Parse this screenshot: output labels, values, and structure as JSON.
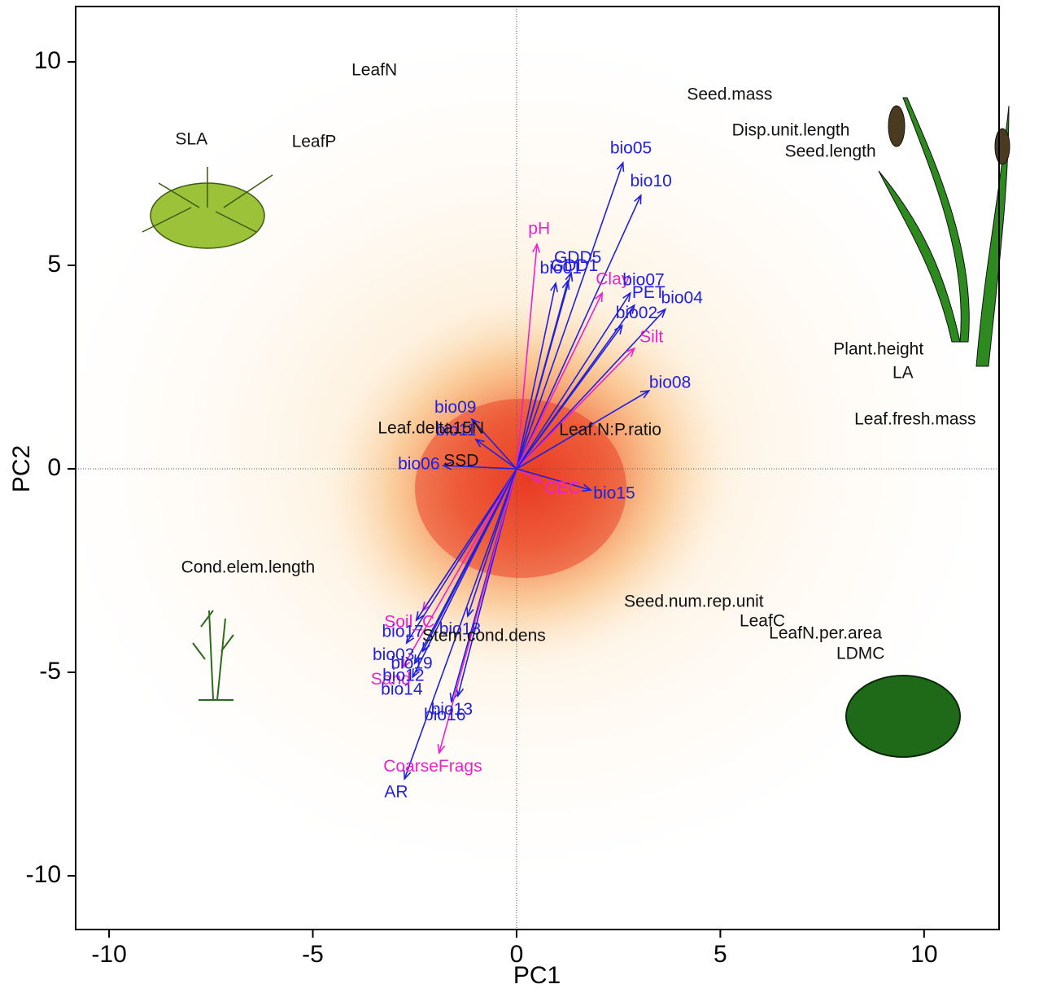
{
  "chart_data": {
    "type": "biplot",
    "xlabel": "PC1",
    "ylabel": "PC2",
    "xlim": [
      -10.82,
      11.84
    ],
    "ylim": [
      -11.32,
      11.36
    ],
    "xticks": [
      -10,
      -5,
      0,
      5,
      10
    ],
    "yticks": [
      -10,
      -5,
      0,
      5,
      10
    ],
    "arrows": [
      {
        "name": "bio05",
        "color": "#2020e0",
        "x": 2.61,
        "y": 7.52
      },
      {
        "name": "bio10",
        "color": "#2020e0",
        "x": 3.05,
        "y": 6.72
      },
      {
        "name": "pH",
        "color": "#ee22cc",
        "x": 0.5,
        "y": 5.52
      },
      {
        "name": "GDD5",
        "color": "#2020e0",
        "x": 1.34,
        "y": 4.82
      },
      {
        "name": "GDD1",
        "color": "#2020e0",
        "x": 1.26,
        "y": 4.62
      },
      {
        "name": "bio01",
        "color": "#2020e0",
        "x": 0.96,
        "y": 4.56
      },
      {
        "name": "Clay",
        "color": "#ee22cc",
        "x": 2.1,
        "y": 4.32
      },
      {
        "name": "bio07",
        "color": "#2020e0",
        "x": 2.79,
        "y": 4.32
      },
      {
        "name": "bio04",
        "color": "#2020e0",
        "x": 3.65,
        "y": 3.92
      },
      {
        "name": "PET",
        "color": "#2020e0",
        "x": 2.89,
        "y": 4.02
      },
      {
        "name": "Silt",
        "color": "#ee22cc",
        "x": 2.89,
        "y": 2.96
      },
      {
        "name": "bio02",
        "color": "#2020e0",
        "x": 2.59,
        "y": 3.52
      },
      {
        "name": "bio08",
        "color": "#2020e0",
        "x": 3.25,
        "y": 1.92
      },
      {
        "name": "bio09",
        "color": "#2020e0",
        "x": -1.1,
        "y": 1.22
      },
      {
        "name": "bio11",
        "color": "#2020e0",
        "x": -1.0,
        "y": 0.72
      },
      {
        "name": "bio06",
        "color": "#2020e0",
        "x": -1.8,
        "y": 0.08
      },
      {
        "name": "CEC",
        "color": "#ee22cc",
        "x": 0.6,
        "y": -0.32
      },
      {
        "name": "bio15",
        "color": "#2020e0",
        "x": 1.82,
        "y": -0.52
      },
      {
        "name": "Soil_C",
        "color": "#ee22cc",
        "x": -2.3,
        "y": -3.48
      },
      {
        "name": "bio17",
        "color": "#2020e0",
        "x": -2.46,
        "y": -3.72
      },
      {
        "name": "bio18",
        "color": "#2020e0",
        "x": -1.2,
        "y": -3.62
      },
      {
        "name": "bio03",
        "color": "#2020e0",
        "x": -2.7,
        "y": -4.28
      },
      {
        "name": "bio19",
        "color": "#2020e0",
        "x": -2.3,
        "y": -4.48
      },
      {
        "name": "bio14",
        "color": "#2020e0",
        "x": -2.55,
        "y": -5.12
      },
      {
        "name": "Sand",
        "color": "#ee22cc",
        "x": -2.79,
        "y": -4.88
      },
      {
        "name": "bio12",
        "color": "#2020e0",
        "x": -2.5,
        "y": -4.78
      },
      {
        "name": "bio13",
        "color": "#2020e0",
        "x": -1.44,
        "y": -5.58
      },
      {
        "name": "bio16",
        "color": "#2020e0",
        "x": -1.6,
        "y": -5.72
      },
      {
        "name": "CoarseFrags",
        "color": "#ee22cc",
        "x": -1.9,
        "y": -6.98
      },
      {
        "name": "AR",
        "color": "#2020e0",
        "x": -2.75,
        "y": -7.62
      }
    ],
    "points_color": "#111111",
    "points": [
      {
        "name": "LeafN",
        "x": -3.49,
        "y": 9.78
      },
      {
        "name": "Seed.mass",
        "x": 5.23,
        "y": 9.18
      },
      {
        "name": "SLA",
        "x": -7.98,
        "y": 8.08
      },
      {
        "name": "LeafP",
        "x": -4.97,
        "y": 8.02
      },
      {
        "name": "Disp.unit.length",
        "x": 6.73,
        "y": 8.3
      },
      {
        "name": "Seed.length",
        "x": 7.7,
        "y": 7.78
      },
      {
        "name": "Plant.height",
        "x": 8.88,
        "y": 2.92
      },
      {
        "name": "LA",
        "x": 9.48,
        "y": 2.34
      },
      {
        "name": "Leaf.fresh.mass",
        "x": 9.78,
        "y": 1.2
      },
      {
        "name": "Leaf.N:P.ratio",
        "x": 2.3,
        "y": 0.94
      },
      {
        "name": "Leaf.delta15N",
        "x": -2.1,
        "y": 0.98
      },
      {
        "name": "SSD",
        "x": -1.36,
        "y": 0.18
      },
      {
        "name": "Cond.elem.length",
        "x": -6.59,
        "y": -2.44
      },
      {
        "name": "Seed.num.rep.unit",
        "x": 4.35,
        "y": -3.28
      },
      {
        "name": "LeafC",
        "x": 6.03,
        "y": -3.76
      },
      {
        "name": "LeafN.per.area",
        "x": 7.58,
        "y": -4.06
      },
      {
        "name": "LDMC",
        "x": 8.44,
        "y": -4.56
      },
      {
        "name": "Stem.cond.dens",
        "x": -0.8,
        "y": -4.12
      }
    ]
  }
}
